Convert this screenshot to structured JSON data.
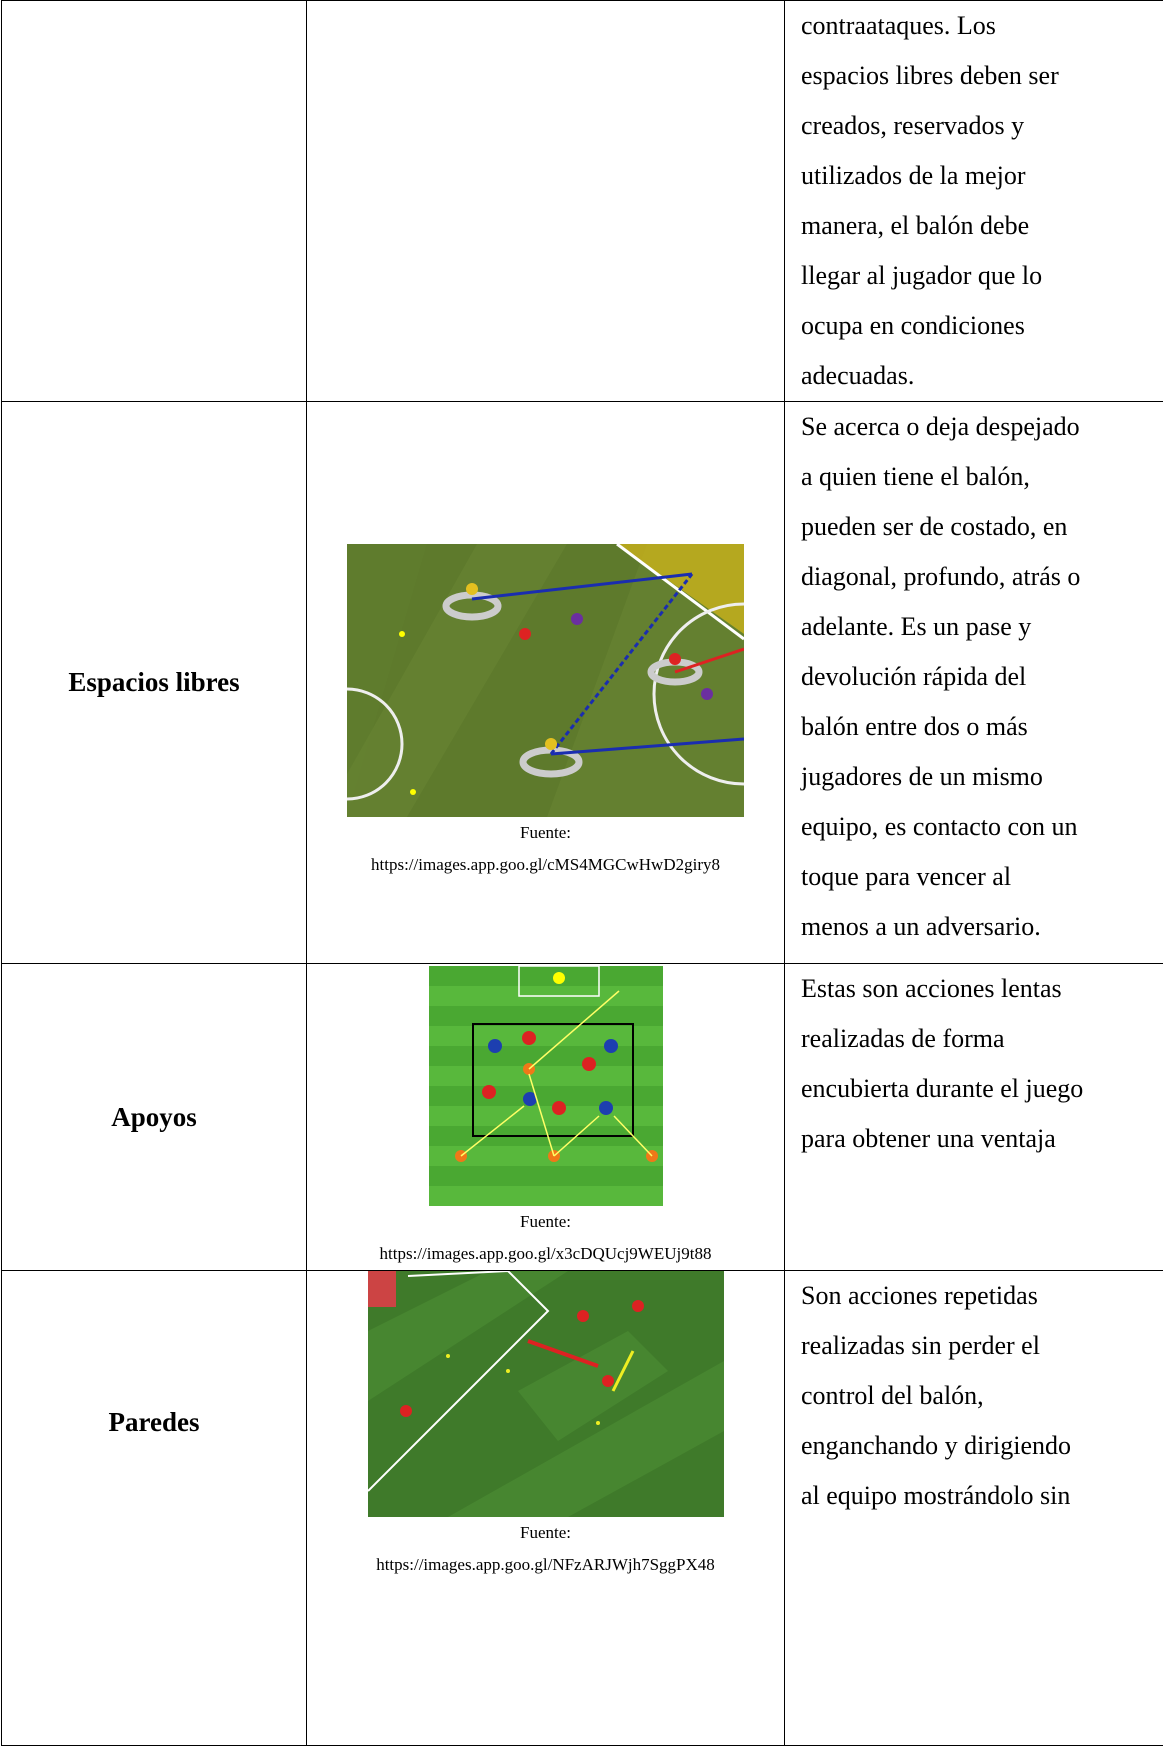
{
  "table": {
    "rows": [
      {
        "label": "",
        "caption": {
          "source": "",
          "url": ""
        },
        "description": [
          "contraataques. Los",
          "espacios libres deben ser",
          "creados, reservados y",
          "utilizados de la mejor",
          "manera, el balón debe",
          "llegar al jugador que lo",
          "ocupa en condiciones",
          "adecuadas."
        ]
      },
      {
        "label": "Espacios libres",
        "caption": {
          "source": "Fuente:",
          "url": "https://images.app.goo.gl/cMS4MGCwHwD2giry8"
        },
        "description": [
          "Se acerca o deja despejado",
          "a quien tiene el balón,",
          "pueden ser de costado, en",
          "diagonal, profundo, atrás o",
          "adelante. Es un pase y",
          "devolución rápida del",
          "balón entre dos o más",
          "jugadores de un mismo",
          "equipo, es contacto con un",
          "toque para vencer al",
          "menos a un adversario."
        ]
      },
      {
        "label": "Apoyos",
        "caption": {
          "source": "Fuente:",
          "url": "https://images.app.goo.gl/x3cDQUcj9WEUj9t88"
        },
        "description": [
          "Estas son acciones lentas",
          "realizadas de forma",
          "encubierta durante el juego",
          "para obtener una ventaja"
        ]
      },
      {
        "label": "Paredes",
        "caption": {
          "source": "Fuente:",
          "url": "https://images.app.goo.gl/NFzARJWjh7SggPX48"
        },
        "description": [
          "Son acciones repetidas",
          "realizadas sin perder el",
          "control del balón,",
          "enganchando y dirigiendo",
          "al equipo mostrándolo sin"
        ]
      }
    ]
  }
}
